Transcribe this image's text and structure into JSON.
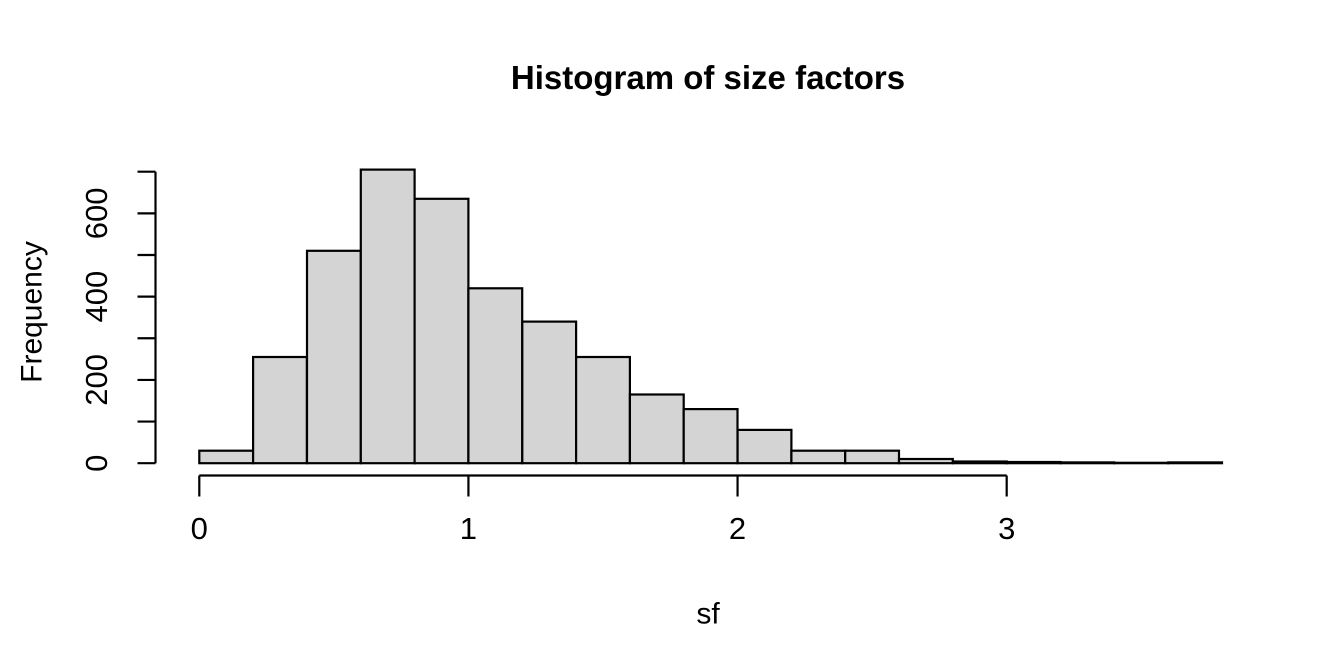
{
  "chart_data": {
    "type": "bar",
    "subtype": "histogram",
    "title": "Histogram of size factors",
    "xlabel": "sf",
    "ylabel": "Frequency",
    "bin_start": 0,
    "bin_width": 0.2,
    "categories": [
      "0.0-0.2",
      "0.2-0.4",
      "0.4-0.6",
      "0.6-0.8",
      "0.8-1.0",
      "1.0-1.2",
      "1.2-1.4",
      "1.4-1.6",
      "1.6-1.8",
      "1.8-2.0",
      "2.0-2.2",
      "2.2-2.4",
      "2.4-2.6",
      "2.6-2.8",
      "2.8-3.0",
      "3.0-3.2",
      "3.2-3.4",
      "3.4-3.6",
      "3.6-3.8"
    ],
    "values": [
      30,
      255,
      510,
      705,
      635,
      420,
      340,
      255,
      165,
      130,
      80,
      30,
      30,
      10,
      4,
      3,
      2,
      1,
      2
    ],
    "xlim": [
      0,
      3.8
    ],
    "ylim": [
      0,
      700
    ],
    "x_ticks": [
      0,
      1,
      2,
      3
    ],
    "x_tick_labels": [
      "0",
      "1",
      "2",
      "3"
    ],
    "y_ticks": [
      0,
      100,
      200,
      300,
      400,
      500,
      600,
      700
    ],
    "y_tick_labels": [
      "0",
      "",
      "200",
      "",
      "400",
      "",
      "600",
      ""
    ],
    "grid": false,
    "legend_position": "none",
    "colors": {
      "bar_fill": "#d4d4d4",
      "bar_stroke": "#000000",
      "axis": "#000000",
      "text": "#000000",
      "background": "#ffffff"
    }
  }
}
